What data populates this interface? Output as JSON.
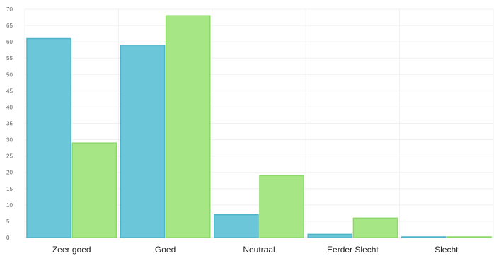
{
  "chart_data": {
    "type": "bar",
    "title": "",
    "xlabel": "",
    "ylabel": "",
    "categories": [
      "Zeer goed",
      "Goed",
      "Neutraal",
      "Eerder Slecht",
      "Slecht"
    ],
    "series": [
      {
        "color": "#6cc6d9",
        "stroke": "#4fb3c9",
        "values": [
          61,
          59,
          7,
          1,
          0
        ]
      },
      {
        "color": "#a6e684",
        "stroke": "#8ed86a",
        "values": [
          29,
          68,
          19,
          6,
          0
        ]
      }
    ],
    "ylim": [
      0,
      70
    ],
    "yticks": [
      0,
      5,
      10,
      15,
      20,
      25,
      30,
      35,
      40,
      45,
      50,
      55,
      60,
      65,
      70
    ],
    "grid": true,
    "legend": "none"
  }
}
